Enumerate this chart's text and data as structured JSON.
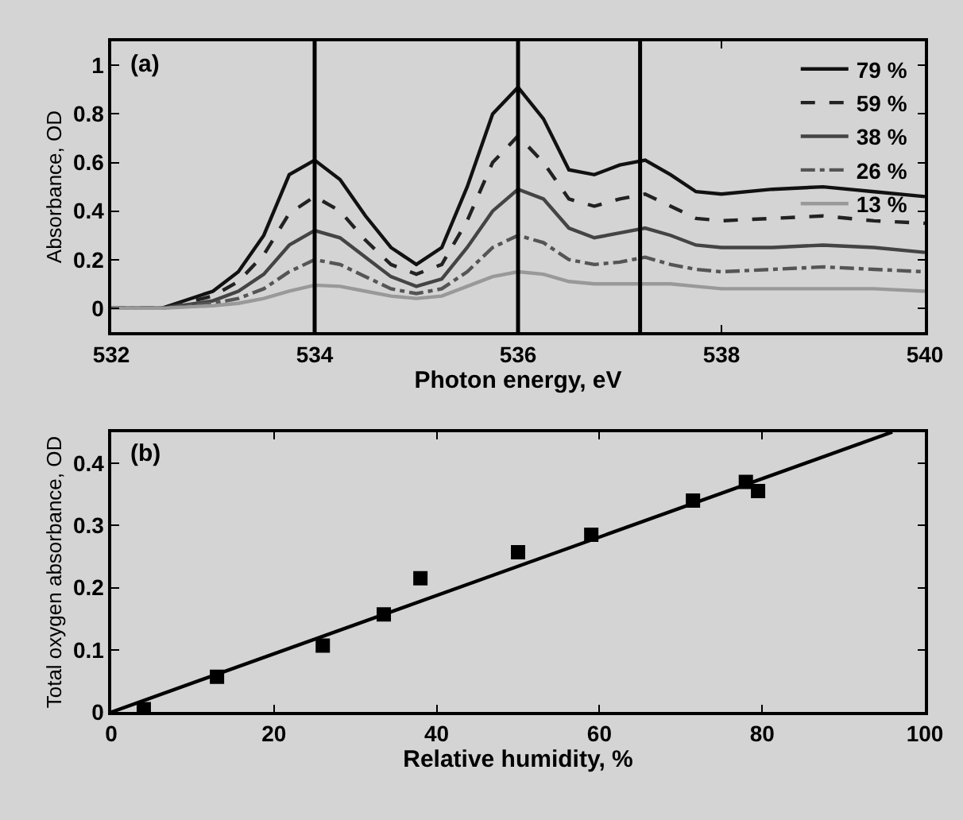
{
  "chart_data": [
    {
      "type": "line",
      "xlabel": "Photon energy, eV",
      "ylabel": "Absorbance, OD",
      "annotations": [
        "(a)"
      ],
      "x": [
        532,
        532.5,
        533,
        533.25,
        533.5,
        533.75,
        534,
        534.25,
        534.5,
        534.75,
        535,
        535.25,
        535.5,
        535.75,
        536,
        536.25,
        536.5,
        536.75,
        537,
        537.25,
        537.5,
        537.75,
        538,
        538.5,
        539,
        539.5,
        540
      ],
      "series": [
        {
          "name": "79 %",
          "color": "#111111",
          "line_style": "solid",
          "values": [
            0,
            0,
            0.07,
            0.15,
            0.3,
            0.55,
            0.61,
            0.53,
            0.38,
            0.25,
            0.18,
            0.25,
            0.5,
            0.8,
            0.91,
            0.78,
            0.57,
            0.55,
            0.59,
            0.61,
            0.55,
            0.48,
            0.47,
            0.49,
            0.5,
            0.48,
            0.46
          ]
        },
        {
          "name": "59 %",
          "color": "#222222",
          "line_style": "dashed",
          "values": [
            0,
            0,
            0.05,
            0.11,
            0.22,
            0.39,
            0.46,
            0.4,
            0.28,
            0.18,
            0.14,
            0.18,
            0.36,
            0.6,
            0.71,
            0.6,
            0.45,
            0.42,
            0.45,
            0.47,
            0.42,
            0.37,
            0.36,
            0.37,
            0.38,
            0.36,
            0.35
          ]
        },
        {
          "name": "38 %",
          "color": "#444444",
          "line_style": "solid",
          "values": [
            0,
            0,
            0.03,
            0.07,
            0.14,
            0.26,
            0.32,
            0.29,
            0.21,
            0.13,
            0.09,
            0.12,
            0.25,
            0.4,
            0.49,
            0.45,
            0.33,
            0.29,
            0.31,
            0.33,
            0.3,
            0.26,
            0.25,
            0.25,
            0.26,
            0.25,
            0.23
          ]
        },
        {
          "name": "26 %",
          "color": "#555555",
          "line_style": "dashdot",
          "values": [
            0,
            0,
            0.02,
            0.04,
            0.08,
            0.15,
            0.2,
            0.18,
            0.13,
            0.08,
            0.06,
            0.08,
            0.15,
            0.25,
            0.3,
            0.27,
            0.2,
            0.18,
            0.19,
            0.21,
            0.18,
            0.16,
            0.15,
            0.16,
            0.17,
            0.16,
            0.15
          ]
        },
        {
          "name": "13 %",
          "color": "#999999",
          "line_style": "solid",
          "values": [
            0,
            0,
            0.01,
            0.02,
            0.04,
            0.07,
            0.095,
            0.09,
            0.07,
            0.05,
            0.04,
            0.05,
            0.09,
            0.13,
            0.15,
            0.14,
            0.11,
            0.1,
            0.1,
            0.1,
            0.1,
            0.09,
            0.08,
            0.08,
            0.08,
            0.08,
            0.07
          ]
        }
      ],
      "xlim": [
        532,
        540
      ],
      "xticks": [
        532,
        534,
        536,
        538,
        540
      ],
      "ylim": [
        -0.1,
        1.1
      ],
      "yticks": [
        0,
        0.2,
        0.4,
        0.6,
        0.8,
        1
      ],
      "ref_lines": [
        {
          "axis": "x",
          "value": 534,
          "color": "#000000"
        },
        {
          "axis": "x",
          "value": 536,
          "color": "#000000"
        },
        {
          "axis": "x",
          "value": 537.2,
          "color": "#000000"
        }
      ],
      "grid": false,
      "legend": "top right"
    },
    {
      "type": "scatter",
      "xlabel": "Relative humidity, %",
      "ylabel": "Total oxygen absorbance, OD",
      "annotations": [
        "(b)"
      ],
      "series": [
        {
          "color": "#000000",
          "marker": "square",
          "x": [
            4,
            13,
            26,
            33.5,
            38,
            50,
            59,
            71.5,
            78,
            79.5
          ],
          "values": [
            0.005,
            0.057,
            0.107,
            0.157,
            0.215,
            0.257,
            0.285,
            0.34,
            0.37,
            0.355
          ]
        },
        {
          "type": "line",
          "color": "#000000",
          "x": [
            0,
            96
          ],
          "values": [
            0,
            0.45
          ]
        }
      ],
      "xlim": [
        0,
        100
      ],
      "xticks": [
        0,
        20,
        40,
        60,
        80,
        100
      ],
      "ylim": [
        0,
        0.45
      ],
      "yticks": [
        0,
        0.1,
        0.2,
        0.3,
        0.4
      ],
      "grid": false,
      "legend": false
    }
  ]
}
